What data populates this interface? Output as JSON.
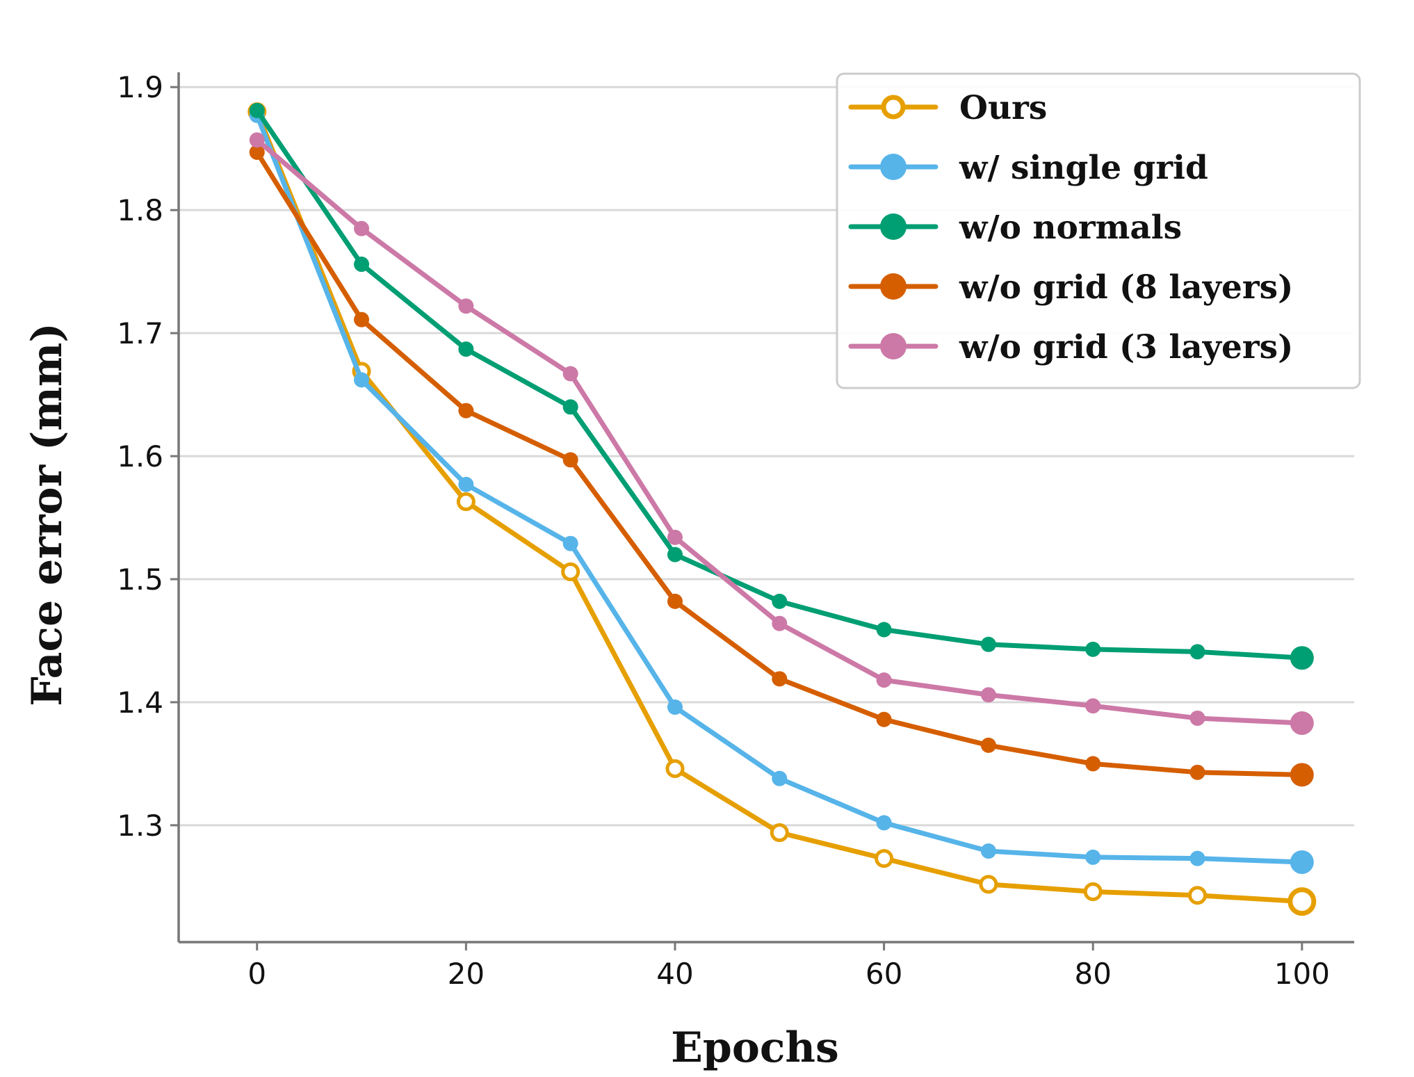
{
  "chart_data": {
    "type": "line",
    "xlabel": "Epochs",
    "ylabel": "Face error (mm)",
    "xlim": [
      -7.5,
      105
    ],
    "ylim": [
      1.205,
      1.912
    ],
    "xticks": [
      0,
      20,
      40,
      60,
      80,
      100
    ],
    "yticks": [
      1.3,
      1.4,
      1.5,
      1.6,
      1.7,
      1.8,
      1.9
    ],
    "grid": "horizontal",
    "legend_position": "top-right",
    "x": [
      0,
      10,
      20,
      30,
      40,
      50,
      60,
      70,
      80,
      90,
      100
    ],
    "series": [
      {
        "name": "Ours",
        "color": "#E69F00",
        "marker": "hollow-circle",
        "values": [
          1.88,
          1.669,
          1.563,
          1.506,
          1.346,
          1.294,
          1.273,
          1.252,
          1.246,
          1.243,
          1.238
        ]
      },
      {
        "name": "w/ single grid",
        "color": "#56B4E9",
        "marker": "circle",
        "values": [
          1.877,
          1.662,
          1.577,
          1.529,
          1.396,
          1.338,
          1.302,
          1.279,
          1.274,
          1.273,
          1.27
        ]
      },
      {
        "name": "w/o normals",
        "color": "#009E73",
        "marker": "circle",
        "values": [
          1.881,
          1.756,
          1.687,
          1.64,
          1.52,
          1.482,
          1.459,
          1.447,
          1.443,
          1.441,
          1.436
        ]
      },
      {
        "name": "w/o grid (8 layers)",
        "color": "#D55E00",
        "marker": "circle",
        "values": [
          1.847,
          1.711,
          1.637,
          1.597,
          1.482,
          1.419,
          1.386,
          1.365,
          1.35,
          1.343,
          1.341
        ]
      },
      {
        "name": "w/o grid (3 layers)",
        "color": "#CC79A7",
        "marker": "circle",
        "values": [
          1.857,
          1.785,
          1.722,
          1.667,
          1.534,
          1.464,
          1.418,
          1.406,
          1.397,
          1.387,
          1.383
        ]
      }
    ]
  }
}
